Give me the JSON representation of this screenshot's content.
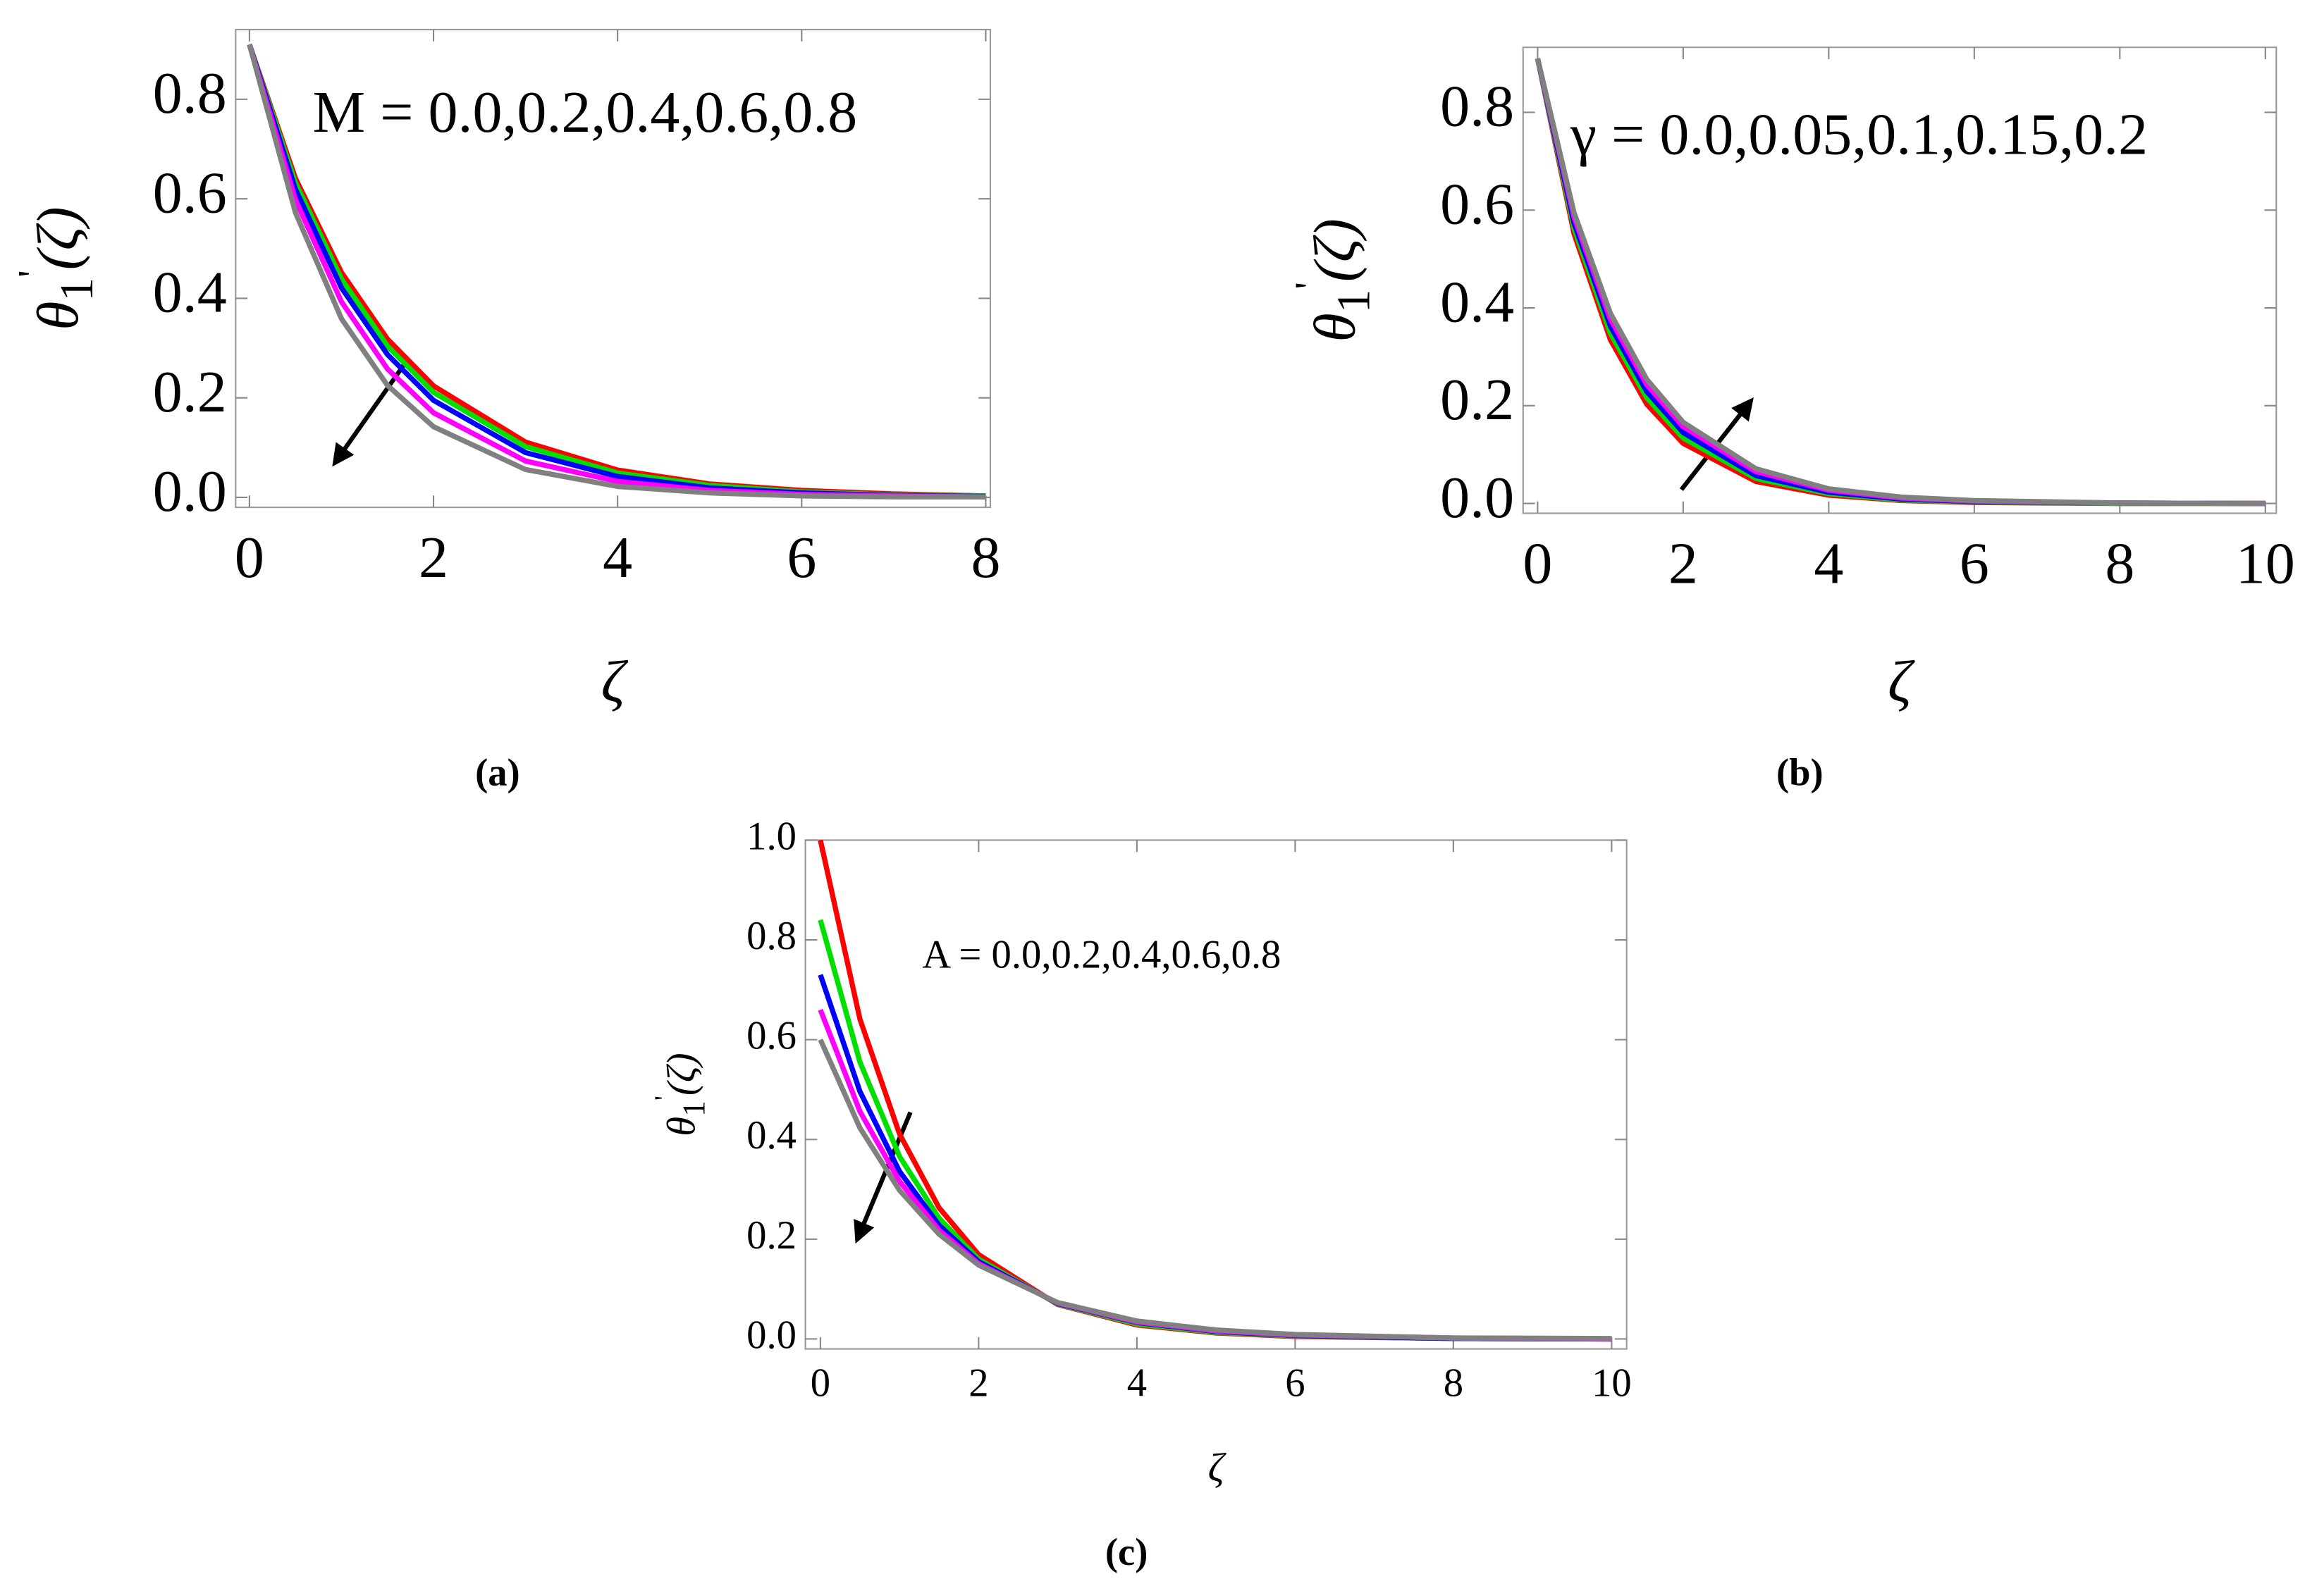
{
  "chart_data": [
    {
      "type": "line",
      "caption": "(a)",
      "annotation": "M = 0.0,0.2,0.4,0.6,0.8",
      "xlabel": "ζ",
      "ylabel": {
        "symbol": "θ",
        "sub": "1",
        "sup": "'",
        "arg": "(ζ)"
      },
      "x": [
        0,
        0.5,
        1,
        1.5,
        2,
        3,
        4,
        5,
        6,
        7,
        8
      ],
      "series": [
        {
          "color": "#ff0000",
          "values": [
            0.91,
            0.641,
            0.452,
            0.318,
            0.224,
            0.111,
            0.055,
            0.027,
            0.014,
            0.007,
            0.003
          ]
        },
        {
          "color": "#00e000",
          "values": [
            0.91,
            0.632,
            0.439,
            0.304,
            0.211,
            0.102,
            0.049,
            0.024,
            0.011,
            0.005,
            0.003
          ]
        },
        {
          "color": "#0000ff",
          "values": [
            0.91,
            0.619,
            0.421,
            0.287,
            0.195,
            0.09,
            0.042,
            0.019,
            0.009,
            0.004,
            0.002
          ]
        },
        {
          "color": "#ff00ff",
          "values": [
            0.91,
            0.598,
            0.393,
            0.258,
            0.17,
            0.073,
            0.032,
            0.014,
            0.006,
            0.003,
            0.001
          ]
        },
        {
          "color": "#808080",
          "values": [
            0.91,
            0.572,
            0.359,
            0.225,
            0.142,
            0.056,
            0.022,
            0.009,
            0.003,
            0.001,
            0.001
          ]
        }
      ],
      "xlim": [
        -0.15,
        8.05
      ],
      "ylim": [
        -0.02,
        0.94
      ],
      "xticks": [
        0,
        2,
        4,
        6,
        8
      ],
      "yticks": [
        {
          "value": 0,
          "label": "0.0"
        },
        {
          "value": 0.2,
          "label": "0.2"
        },
        {
          "value": 0.4,
          "label": "0.4"
        },
        {
          "value": 0.6,
          "label": "0.6"
        },
        {
          "value": 0.8,
          "label": "0.8"
        }
      ]
    },
    {
      "type": "line",
      "caption": "(b)",
      "annotation": "γ = 0.0,0.05,0.1,0.15,0.2",
      "xlabel": "ζ",
      "ylabel": {
        "symbol": "θ",
        "sub": "1",
        "sup": "'",
        "arg": "(ζ)"
      },
      "x": [
        0,
        0.5,
        1,
        1.5,
        2,
        3,
        4,
        5,
        6,
        8,
        10
      ],
      "series": [
        {
          "color": "#ff0000",
          "values": [
            0.91,
            0.552,
            0.335,
            0.203,
            0.123,
            0.045,
            0.017,
            0.006,
            0.002,
            0.0,
            0.0
          ]
        },
        {
          "color": "#00e000",
          "values": [
            0.91,
            0.563,
            0.348,
            0.216,
            0.134,
            0.051,
            0.02,
            0.007,
            0.003,
            0.0,
            0.0
          ]
        },
        {
          "color": "#0000ff",
          "values": [
            0.91,
            0.574,
            0.363,
            0.229,
            0.145,
            0.057,
            0.023,
            0.009,
            0.004,
            0.001,
            0.0
          ]
        },
        {
          "color": "#ff00ff",
          "values": [
            0.91,
            0.586,
            0.377,
            0.243,
            0.157,
            0.065,
            0.027,
            0.011,
            0.005,
            0.001,
            0.0
          ]
        },
        {
          "color": "#808080",
          "values": [
            0.91,
            0.595,
            0.389,
            0.254,
            0.166,
            0.071,
            0.03,
            0.013,
            0.006,
            0.001,
            0.0
          ]
        }
      ],
      "xlim": [
        -0.2,
        10.15
      ],
      "ylim": [
        -0.02,
        0.933
      ],
      "xticks": [
        0,
        2,
        4,
        6,
        8,
        10
      ],
      "yticks": [
        {
          "value": 0,
          "label": "0.0"
        },
        {
          "value": 0.2,
          "label": "0.2"
        },
        {
          "value": 0.4,
          "label": "0.4"
        },
        {
          "value": 0.6,
          "label": "0.6"
        },
        {
          "value": 0.8,
          "label": "0.8"
        }
      ]
    },
    {
      "type": "line",
      "caption": "(c)",
      "annotation": "A = 0.0,0.2,0.4,0.6,0.8",
      "xlabel": "ζ",
      "ylabel": {
        "symbol": "θ",
        "sub": "1",
        "sup": "'",
        "arg": "(ζ)"
      },
      "x": [
        0,
        0.5,
        1,
        1.5,
        2,
        3,
        4,
        5,
        6,
        8,
        10
      ],
      "series": [
        {
          "color": "#ff0000",
          "values": [
            1.0,
            0.641,
            0.411,
            0.263,
            0.169,
            0.069,
            0.028,
            0.012,
            0.005,
            0.001,
            0.0
          ]
        },
        {
          "color": "#00e000",
          "values": [
            0.84,
            0.555,
            0.366,
            0.242,
            0.16,
            0.07,
            0.03,
            0.013,
            0.006,
            0.001,
            0.0
          ]
        },
        {
          "color": "#0000ff",
          "values": [
            0.73,
            0.496,
            0.336,
            0.228,
            0.155,
            0.071,
            0.033,
            0.015,
            0.007,
            0.001,
            0.0
          ]
        },
        {
          "color": "#ff00ff",
          "values": [
            0.66,
            0.456,
            0.316,
            0.218,
            0.151,
            0.072,
            0.034,
            0.016,
            0.008,
            0.002,
            0.0
          ]
        },
        {
          "color": "#808080",
          "values": [
            0.6,
            0.423,
            0.298,
            0.21,
            0.148,
            0.073,
            0.036,
            0.018,
            0.009,
            0.002,
            0.001
          ]
        }
      ],
      "xlim": [
        -0.19,
        10.19
      ],
      "ylim": [
        -0.02,
        1.0
      ],
      "xticks": [
        0,
        2,
        4,
        6,
        8,
        10
      ],
      "yticks": [
        {
          "value": 0,
          "label": "0.0"
        },
        {
          "value": 0.2,
          "label": "0.2"
        },
        {
          "value": 0.4,
          "label": "0.4"
        },
        {
          "value": 0.6,
          "label": "0.6"
        },
        {
          "value": 0.8,
          "label": "0.8"
        },
        {
          "value": 1.0,
          "label": "1.0"
        }
      ]
    }
  ]
}
